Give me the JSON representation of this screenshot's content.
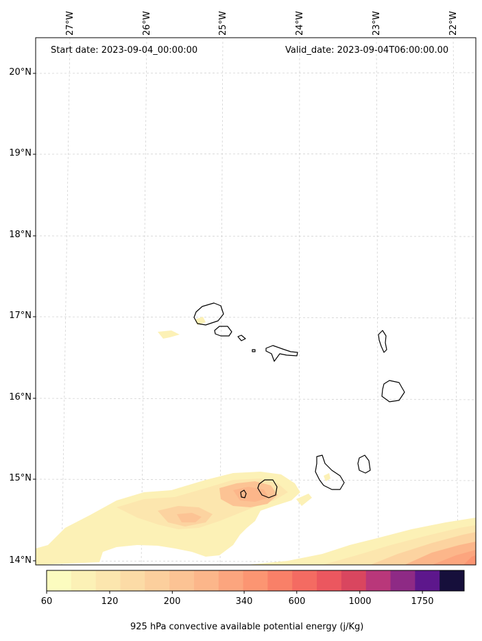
{
  "header": {
    "start_date": "Start date: 2023-09-04_00:00:00",
    "valid_date": "Valid_date: 2023-09-04T06:00:00.00"
  },
  "longitude_labels": [
    "27°W",
    "26°W",
    "25°W",
    "24°W",
    "23°W",
    "22°W"
  ],
  "latitude_labels": [
    "20°N",
    "19°N",
    "18°N",
    "17°N",
    "16°N",
    "15°N",
    "14°N"
  ],
  "colorbar": {
    "title": "925 hPa convective available potential energy (j/Kg)",
    "tick_labels": [
      "60",
      "120",
      "200",
      "340",
      "600",
      "1000",
      "1750"
    ],
    "colors": [
      "#fcfcbf",
      "#fcf1b6",
      "#fce6ae",
      "#fcdba6",
      "#fccf9d",
      "#fcc394",
      "#fcb68a",
      "#fca57e",
      "#fc9572",
      "#f98068",
      "#f46b62",
      "#eb575f",
      "#d9465f",
      "#b9377a",
      "#8e2a85",
      "#5d178c",
      "#160f3b"
    ]
  },
  "chart_data": {
    "type": "heatmap",
    "variable": "925 hPa convective available potential energy (j/Kg)",
    "colorbar_levels": [
      60,
      120,
      200,
      340,
      600,
      1000,
      1750
    ],
    "lon_ticks": [
      "27°W",
      "26°W",
      "25°W",
      "24°W",
      "23°W",
      "22°W"
    ],
    "lat_ticks": [
      "20°N",
      "19°N",
      "18°N",
      "17°N",
      "16°N",
      "15°N",
      "14°N"
    ],
    "grid": true
  }
}
